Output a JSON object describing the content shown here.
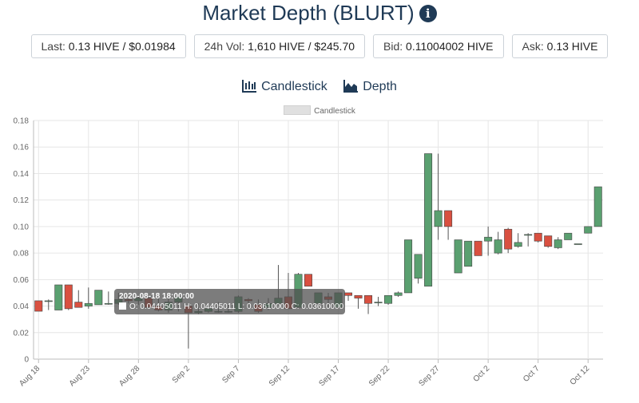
{
  "header": {
    "title": "Market Depth (BLURT)",
    "info_icon": "info-icon"
  },
  "stats": [
    {
      "label": "Last:",
      "value": "0.13 HIVE / $0.01984"
    },
    {
      "label": "24h Vol:",
      "value": "1,610 HIVE / $245.70"
    },
    {
      "label": "Bid:",
      "value": "0.11004002 HIVE"
    },
    {
      "label": "Ask:",
      "value": "0.13 HIVE"
    }
  ],
  "tabs": [
    {
      "label": "Candlestick",
      "icon": "candlestick-chart-icon"
    },
    {
      "label": "Depth",
      "icon": "area-chart-icon"
    }
  ],
  "colors": {
    "up": "#5aa070",
    "down": "#d95040",
    "title": "#1f3a56"
  },
  "tooltip": {
    "title": "2020-08-18 18:00:00",
    "line": "O: 0.04405011  H: 0.04405011  L: 0.03610000  C: 0.03610000"
  },
  "chart_data": {
    "type": "candlestick",
    "legend": "Candlestick",
    "ylim": [
      0,
      0.18
    ],
    "yticks": [
      "0",
      "0.02",
      "0.04",
      "0.06",
      "0.08",
      "0.10",
      "0.12",
      "0.14",
      "0.16",
      "0.18"
    ],
    "xticks": [
      "Aug 18",
      "Aug 23",
      "Aug 28",
      "Sep 2",
      "Sep 7",
      "Sep 12",
      "Sep 17",
      "Sep 22",
      "Sep 27",
      "Oct 2",
      "Oct 7",
      "Oct 12"
    ],
    "candles": [
      {
        "o": 0.044,
        "h": 0.044,
        "l": 0.0361,
        "c": 0.0361
      },
      {
        "o": 0.044,
        "h": 0.045,
        "l": 0.037,
        "c": 0.044
      },
      {
        "o": 0.037,
        "h": 0.056,
        "l": 0.037,
        "c": 0.056
      },
      {
        "o": 0.056,
        "h": 0.056,
        "l": 0.037,
        "c": 0.038
      },
      {
        "o": 0.043,
        "h": 0.052,
        "l": 0.039,
        "c": 0.039
      },
      {
        "o": 0.04,
        "h": 0.054,
        "l": 0.038,
        "c": 0.042
      },
      {
        "o": 0.041,
        "h": 0.052,
        "l": 0.041,
        "c": 0.052
      },
      {
        "o": 0.042,
        "h": 0.051,
        "l": 0.041,
        "c": 0.042
      },
      {
        "o": 0.042,
        "h": 0.05,
        "l": 0.041,
        "c": 0.045
      },
      {
        "o": 0.045,
        "h": 0.046,
        "l": 0.042,
        "c": 0.044
      },
      {
        "o": 0.044,
        "h": 0.048,
        "l": 0.041,
        "c": 0.046
      },
      {
        "o": 0.046,
        "h": 0.047,
        "l": 0.038,
        "c": 0.039
      },
      {
        "o": 0.04,
        "h": 0.048,
        "l": 0.036,
        "c": 0.037
      },
      {
        "o": 0.037,
        "h": 0.046,
        "l": 0.035,
        "c": 0.043
      },
      {
        "o": 0.043,
        "h": 0.047,
        "l": 0.036,
        "c": 0.047
      },
      {
        "o": 0.04,
        "h": 0.042,
        "l": 0.008,
        "c": 0.035
      },
      {
        "o": 0.035,
        "h": 0.042,
        "l": 0.034,
        "c": 0.036
      },
      {
        "o": 0.036,
        "h": 0.042,
        "l": 0.035,
        "c": 0.038
      },
      {
        "o": 0.036,
        "h": 0.043,
        "l": 0.035,
        "c": 0.036
      },
      {
        "o": 0.036,
        "h": 0.041,
        "l": 0.035,
        "c": 0.036
      },
      {
        "o": 0.036,
        "h": 0.048,
        "l": 0.035,
        "c": 0.047
      },
      {
        "o": 0.045,
        "h": 0.046,
        "l": 0.038,
        "c": 0.044
      },
      {
        "o": 0.041,
        "h": 0.045,
        "l": 0.035,
        "c": 0.036
      },
      {
        "o": 0.039,
        "h": 0.046,
        "l": 0.037,
        "c": 0.042
      },
      {
        "o": 0.042,
        "h": 0.071,
        "l": 0.04,
        "c": 0.046
      },
      {
        "o": 0.047,
        "h": 0.065,
        "l": 0.038,
        "c": 0.038
      },
      {
        "o": 0.039,
        "h": 0.065,
        "l": 0.039,
        "c": 0.064
      },
      {
        "o": 0.064,
        "h": 0.064,
        "l": 0.055,
        "c": 0.055
      },
      {
        "o": 0.042,
        "h": 0.05,
        "l": 0.04,
        "c": 0.05
      },
      {
        "o": 0.047,
        "h": 0.05,
        "l": 0.039,
        "c": 0.045
      },
      {
        "o": 0.039,
        "h": 0.05,
        "l": 0.038,
        "c": 0.05
      },
      {
        "o": 0.05,
        "h": 0.05,
        "l": 0.044,
        "c": 0.048
      },
      {
        "o": 0.048,
        "h": 0.048,
        "l": 0.038,
        "c": 0.046
      },
      {
        "o": 0.048,
        "h": 0.048,
        "l": 0.034,
        "c": 0.042
      },
      {
        "o": 0.043,
        "h": 0.047,
        "l": 0.04,
        "c": 0.043
      },
      {
        "o": 0.042,
        "h": 0.048,
        "l": 0.041,
        "c": 0.048
      },
      {
        "o": 0.048,
        "h": 0.051,
        "l": 0.047,
        "c": 0.05
      },
      {
        "o": 0.05,
        "h": 0.09,
        "l": 0.05,
        "c": 0.09
      },
      {
        "o": 0.061,
        "h": 0.079,
        "l": 0.057,
        "c": 0.079
      },
      {
        "o": 0.055,
        "h": 0.155,
        "l": 0.055,
        "c": 0.155
      },
      {
        "o": 0.1,
        "h": 0.155,
        "l": 0.09,
        "c": 0.112
      },
      {
        "o": 0.112,
        "h": 0.112,
        "l": 0.09,
        "c": 0.1
      },
      {
        "o": 0.065,
        "h": 0.09,
        "l": 0.065,
        "c": 0.09
      },
      {
        "o": 0.07,
        "h": 0.089,
        "l": 0.07,
        "c": 0.089
      },
      {
        "o": 0.089,
        "h": 0.089,
        "l": 0.078,
        "c": 0.078
      },
      {
        "o": 0.089,
        "h": 0.1,
        "l": 0.078,
        "c": 0.092
      },
      {
        "o": 0.08,
        "h": 0.096,
        "l": 0.079,
        "c": 0.09
      },
      {
        "o": 0.098,
        "h": 0.099,
        "l": 0.08,
        "c": 0.083
      },
      {
        "o": 0.085,
        "h": 0.095,
        "l": 0.084,
        "c": 0.088
      },
      {
        "o": 0.094,
        "h": 0.095,
        "l": 0.085,
        "c": 0.094
      },
      {
        "o": 0.095,
        "h": 0.095,
        "l": 0.088,
        "c": 0.089
      },
      {
        "o": 0.093,
        "h": 0.093,
        "l": 0.084,
        "c": 0.085
      },
      {
        "o": 0.084,
        "h": 0.092,
        "l": 0.083,
        "c": 0.09
      },
      {
        "o": 0.09,
        "h": 0.095,
        "l": 0.09,
        "c": 0.095
      },
      {
        "o": 0.087,
        "h": 0.087,
        "l": 0.087,
        "c": 0.087
      },
      {
        "o": 0.095,
        "h": 0.1,
        "l": 0.095,
        "c": 0.1
      },
      {
        "o": 0.1,
        "h": 0.13,
        "l": 0.1,
        "c": 0.13
      }
    ]
  }
}
